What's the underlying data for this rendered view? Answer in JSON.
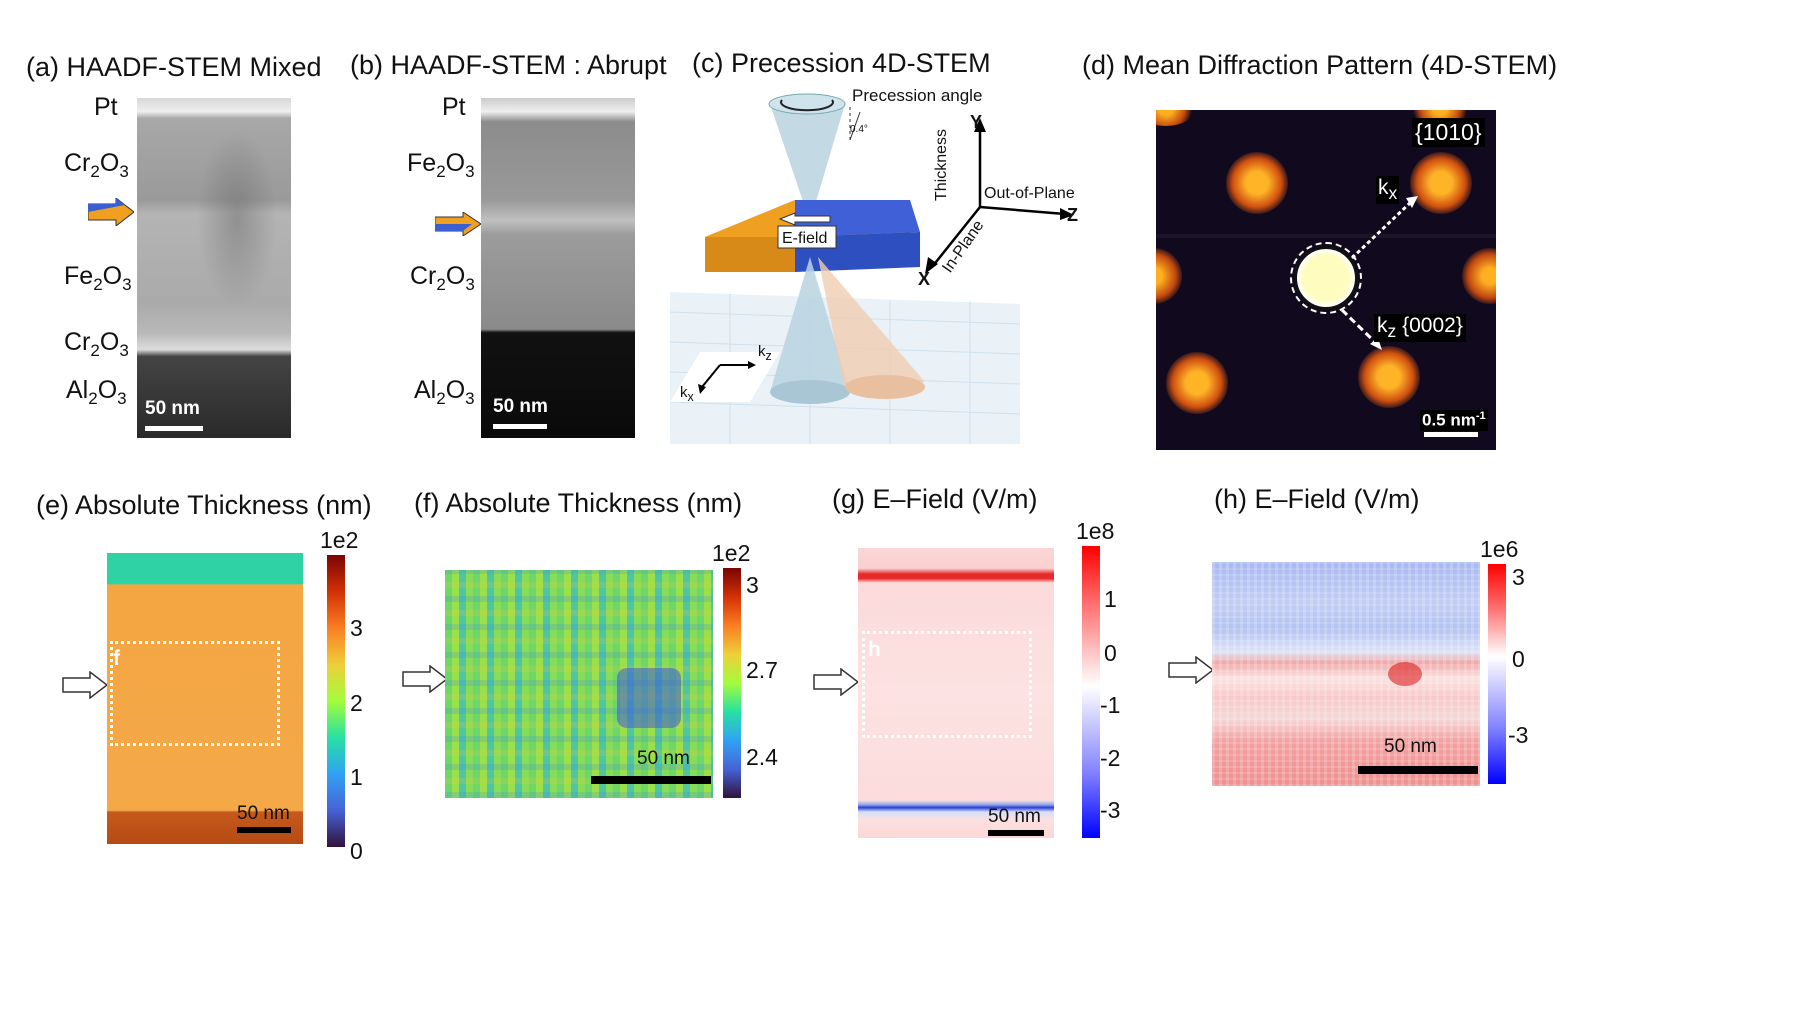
{
  "panels": {
    "a": {
      "title": "(a) HAADF-STEM Mixed",
      "layers": {
        "pt": "Pt",
        "cr_top": "Cr",
        "fe": "Fe",
        "cr_bot": "Cr",
        "al": "Al"
      },
      "scale": "50 nm"
    },
    "b": {
      "title": "(b) HAADF-STEM : Abrupt",
      "layers": {
        "pt": "Pt",
        "fe": "Fe",
        "cr": "Cr",
        "al": "Al"
      },
      "scale": "50 nm"
    },
    "c": {
      "title": "(c)    Precession 4D-STEM",
      "precession_angle": "Precession angle",
      "angle_value": "0.4°",
      "efield": "E-field",
      "axes": {
        "y": "Y",
        "z": "Z",
        "x": "X",
        "thickness": "Thickness",
        "out_of_plane": "Out-of-Plane",
        "in_plane": "In-Plane"
      },
      "k_z": "k",
      "k_x": "k"
    },
    "d": {
      "title": "(d) Mean Diffraction Pattern (4D-STEM)",
      "miller_top": "{1010}",
      "miller_bot": "{0002}",
      "kx": "k",
      "kz": "k",
      "scale": "0.5 nm",
      "scale_exp": "-1"
    },
    "e": {
      "title": "(e) Absolute Thickness (nm)",
      "cb_exp": "1e2",
      "cb_ticks": [
        "3",
        "2",
        "1",
        "0"
      ],
      "box_label": "f",
      "scale": "50 nm"
    },
    "f": {
      "title": "(f) Absolute Thickness (nm)",
      "cb_exp": "1e2",
      "cb_ticks": [
        "3",
        "2.7",
        "2.4"
      ],
      "scale": "50 nm"
    },
    "g": {
      "title": "(g)     E–Field (V/m)",
      "cb_exp": "1e8",
      "cb_ticks": [
        "1",
        "0",
        "-1",
        "-2",
        "-3"
      ],
      "box_label": "h",
      "scale": "50 nm"
    },
    "h": {
      "title": "(h) E–Field (V/m)",
      "cb_exp": "1e6",
      "cb_ticks": [
        "3",
        "0",
        "-3"
      ],
      "scale": "50 nm"
    }
  },
  "subscripts": {
    "two": "2",
    "three": "3",
    "z": "z",
    "x": "x"
  },
  "colors": {
    "orange": "#f0a020",
    "blue": "#3a5fd0",
    "red": "#e0202a"
  }
}
